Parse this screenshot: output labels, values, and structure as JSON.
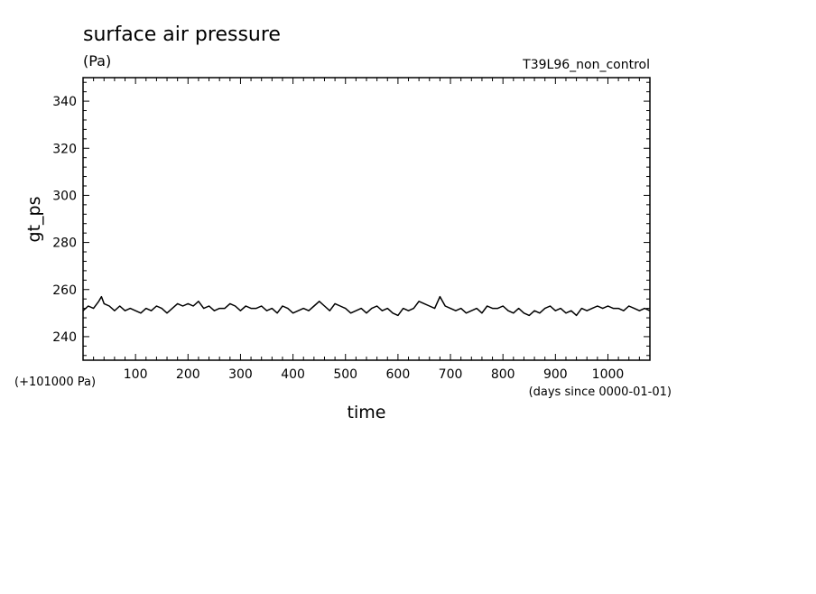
{
  "chart_data": {
    "type": "line",
    "title": "surface air pressure",
    "units": "(Pa)",
    "experiment": "T39L96_non_control",
    "xlabel": "time",
    "x_units": "(days since 0000-01-01)",
    "ylabel": "gt_ps",
    "y_offset_label": "(+101000 Pa)",
    "xlim": [
      0,
      1080
    ],
    "ylim": [
      230,
      350
    ],
    "x_ticks": [
      100,
      200,
      300,
      400,
      500,
      600,
      700,
      800,
      900,
      1000
    ],
    "x_tick_labels": [
      "100",
      "200",
      "300",
      "400",
      "500",
      "600",
      "700",
      "800",
      "900",
      "1000"
    ],
    "y_ticks": [
      240,
      260,
      280,
      300,
      320,
      340
    ],
    "y_tick_labels": [
      "240",
      "260",
      "280",
      "300",
      "320",
      "340"
    ],
    "grid": false,
    "color": "#000000",
    "series": [
      {
        "x": [
          0,
          10,
          20,
          30,
          35,
          40,
          50,
          60,
          70,
          80,
          90,
          100,
          110,
          120,
          130,
          140,
          150,
          160,
          170,
          180,
          190,
          200,
          210,
          220,
          230,
          240,
          250,
          260,
          270,
          280,
          290,
          300,
          310,
          320,
          330,
          340,
          350,
          360,
          370,
          380,
          390,
          400,
          410,
          420,
          430,
          440,
          450,
          460,
          470,
          480,
          490,
          500,
          510,
          520,
          530,
          540,
          550,
          560,
          570,
          580,
          590,
          600,
          610,
          620,
          630,
          640,
          650,
          660,
          670,
          680,
          690,
          700,
          710,
          720,
          730,
          740,
          750,
          760,
          770,
          780,
          790,
          800,
          810,
          820,
          830,
          840,
          850,
          860,
          870,
          880,
          890,
          900,
          910,
          920,
          930,
          940,
          950,
          960,
          970,
          980,
          990,
          1000,
          1010,
          1020,
          1030,
          1040,
          1050,
          1060,
          1070,
          1080
        ],
        "values": [
          251,
          253,
          252,
          255,
          257,
          254,
          253,
          251,
          253,
          251,
          252,
          251,
          250,
          252,
          251,
          253,
          252,
          250,
          252,
          254,
          253,
          254,
          253,
          255,
          252,
          253,
          251,
          252,
          252,
          254,
          253,
          251,
          253,
          252,
          252,
          253,
          251,
          252,
          250,
          253,
          252,
          250,
          251,
          252,
          251,
          253,
          255,
          253,
          251,
          254,
          253,
          252,
          250,
          251,
          252,
          250,
          252,
          253,
          251,
          252,
          250,
          249,
          252,
          251,
          252,
          255,
          254,
          253,
          252,
          257,
          253,
          252,
          251,
          252,
          250,
          251,
          252,
          250,
          253,
          252,
          252,
          253,
          251,
          250,
          252,
          250,
          249,
          251,
          250,
          252,
          253,
          251,
          252,
          250,
          251,
          249,
          252,
          251,
          252,
          253,
          252,
          253,
          252,
          252,
          251,
          253,
          252,
          251,
          252,
          251
        ]
      }
    ]
  }
}
